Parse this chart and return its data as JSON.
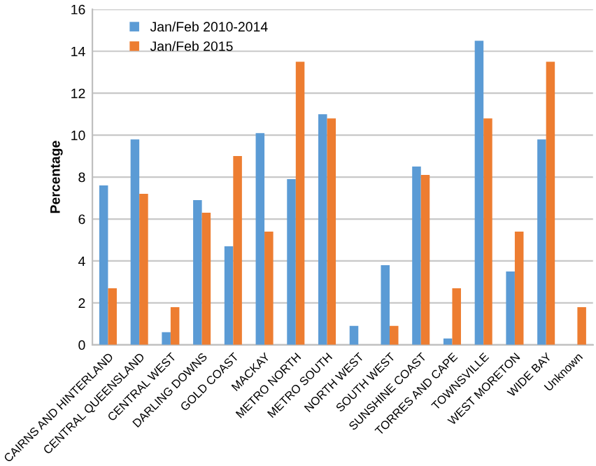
{
  "chart_data": {
    "type": "bar",
    "ylabel": "Percentage",
    "categories": [
      "CAIRNS AND HINTERLAND",
      "CENTRAL QUEENSLAND",
      "CENTRAL WEST",
      "DARLING DOWNS",
      "GOLD COAST",
      "MACKAY",
      "METRO NORTH",
      "METRO SOUTH",
      "NORTH WEST",
      "SOUTH WEST",
      "SUNSHINE COAST",
      "TORRES AND CAPE",
      "TOWNSVILLE",
      "WEST MORETON",
      "WIDE BAY",
      "Unknown"
    ],
    "series": [
      {
        "name": "Jan/Feb 2010-2014",
        "color": "#5b9bd5",
        "values": [
          7.6,
          9.8,
          0.6,
          6.9,
          4.7,
          10.1,
          7.9,
          11.0,
          0.9,
          3.8,
          8.5,
          0.3,
          14.5,
          3.5,
          9.8,
          null
        ]
      },
      {
        "name": "Jan/Feb 2015",
        "color": "#ed7d31",
        "values": [
          2.7,
          7.2,
          1.8,
          6.3,
          9.0,
          5.4,
          13.5,
          10.8,
          null,
          0.9,
          8.1,
          2.7,
          10.8,
          5.4,
          13.5,
          1.8
        ]
      }
    ],
    "ylim": [
      0,
      16
    ],
    "yticks": [
      0,
      2,
      4,
      6,
      8,
      10,
      12,
      14,
      16
    ],
    "grid": "y",
    "legend": "top left"
  }
}
